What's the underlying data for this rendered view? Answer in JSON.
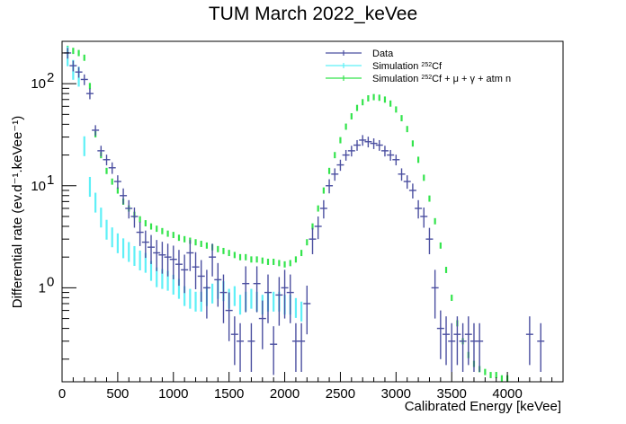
{
  "chart_data": {
    "type": "scatter",
    "title": "TUM March 2022_keVee",
    "xlabel": "Calibrated Energy [keVee]",
    "ylabel": "Differential rate (ev.d⁻¹.keVee⁻¹)",
    "xlim": [
      0,
      4500
    ],
    "ylim": [
      0.12,
      260
    ],
    "yscale": "log",
    "x_ticks": [
      0,
      500,
      1000,
      1500,
      2000,
      2500,
      3000,
      3500,
      4000
    ],
    "y_ticks": [
      {
        "value": 1,
        "label": "1",
        "exp": "0"
      },
      {
        "value": 10,
        "label": "10",
        "exp": "1"
      },
      {
        "value": 100,
        "label": "10",
        "exp": "2"
      }
    ],
    "legend_position": "top-right",
    "legend": [
      {
        "label": "Data",
        "sup": "",
        "suffix": ""
      },
      {
        "label": "Simulation ",
        "sup": "252",
        "suffix": "Cf"
      },
      {
        "label": "Simulation ",
        "sup": "252",
        "suffix": "Cf + μ + γ + atm n"
      }
    ],
    "series": [
      {
        "name": "Data",
        "color": "#4b4fa0",
        "x": [
          50,
          100,
          150,
          200,
          250,
          300,
          350,
          400,
          450,
          500,
          550,
          600,
          650,
          700,
          750,
          800,
          850,
          900,
          950,
          1000,
          1050,
          1100,
          1150,
          1200,
          1250,
          1300,
          1350,
          1400,
          1450,
          1500,
          1550,
          1600,
          1650,
          1700,
          1750,
          1800,
          1850,
          1900,
          1950,
          2000,
          2050,
          2100,
          2150,
          2200,
          2250,
          2300,
          2350,
          2400,
          2450,
          2500,
          2550,
          2600,
          2650,
          2700,
          2750,
          2800,
          2850,
          2900,
          2950,
          3000,
          3050,
          3100,
          3150,
          3200,
          3250,
          3300,
          3350,
          3400,
          3450,
          3500,
          3550,
          3600,
          3650,
          3700,
          3750,
          4200,
          4300
        ],
        "y": [
          200,
          150,
          130,
          110,
          80,
          35,
          22,
          18,
          15,
          11,
          8,
          6,
          5,
          3.5,
          2.8,
          2.5,
          2.2,
          2.1,
          2.0,
          1.9,
          1.7,
          1.5,
          2.2,
          1.6,
          1.3,
          1.0,
          2.0,
          1.2,
          0.9,
          0.6,
          0.35,
          0.3,
          1.1,
          0.3,
          1.1,
          0.5,
          0.9,
          0.28,
          0.85,
          1.0,
          0.9,
          0.3,
          0.3,
          0.7,
          3.0,
          4.0,
          6.0,
          10.0,
          13.0,
          16.0,
          20.0,
          22.0,
          25.0,
          28.0,
          27.0,
          26.0,
          25.0,
          22.0,
          20.0,
          18.0,
          13.0,
          11.0,
          9.0,
          6.0,
          5.0,
          3.0,
          1.0,
          0.4,
          0.35,
          0.3,
          0.35,
          0.3,
          0.35,
          0.3,
          0.3,
          0.35,
          0.3
        ]
      },
      {
        "name": "Simulation 252Cf",
        "color": "#5ef0f7",
        "x": [
          50,
          100,
          150,
          200,
          250,
          300,
          350,
          400,
          450,
          500,
          550,
          600,
          650,
          700,
          750,
          800,
          850,
          900,
          950,
          1000,
          1050,
          1100,
          1150,
          1200,
          1250,
          1300,
          1350,
          1400,
          1450,
          1500,
          1550,
          1600,
          1650,
          1700,
          1750,
          1800,
          1850,
          1900,
          1950,
          2000,
          2050,
          2100,
          2150
        ],
        "y": [
          190,
          140,
          120,
          25,
          10,
          7,
          5,
          3.8,
          3.2,
          2.8,
          2.5,
          2.3,
          2.1,
          1.9,
          1.8,
          1.5,
          1.3,
          1.25,
          1.2,
          1.1,
          1.0,
          0.85,
          0.8,
          0.75,
          0.75,
          0.85,
          0.9,
          1.0,
          0.95,
          0.8,
          0.85,
          0.7,
          0.75,
          0.8,
          0.75,
          0.7,
          0.75,
          0.75,
          0.75,
          0.7,
          0.7,
          0.65,
          0.6
        ]
      },
      {
        "name": "Simulation 252Cf + μ + γ + atm n",
        "color": "#33e44c",
        "x": [
          50,
          100,
          150,
          200,
          250,
          300,
          350,
          400,
          450,
          500,
          550,
          600,
          650,
          700,
          750,
          800,
          850,
          900,
          950,
          1000,
          1050,
          1100,
          1150,
          1200,
          1250,
          1300,
          1350,
          1400,
          1450,
          1500,
          1550,
          1600,
          1650,
          1700,
          1750,
          1800,
          1850,
          1900,
          1950,
          2000,
          2050,
          2100,
          2150,
          2200,
          2250,
          2300,
          2350,
          2400,
          2450,
          2500,
          2550,
          2600,
          2650,
          2700,
          2750,
          2800,
          2850,
          2900,
          2950,
          3000,
          3050,
          3100,
          3150,
          3200,
          3250,
          3300,
          3350,
          3400,
          3450,
          3500,
          3550,
          3600,
          3650,
          3700,
          3750,
          3800,
          3850,
          3900,
          3950,
          4000
        ],
        "y": [
          220,
          210,
          200,
          180,
          95,
          32,
          20,
          14,
          11,
          9,
          7,
          6,
          5.2,
          4.7,
          4.3,
          4.0,
          3.8,
          3.6,
          3.4,
          3.3,
          3.1,
          3.0,
          2.9,
          2.8,
          2.7,
          2.6,
          2.5,
          2.4,
          2.3,
          2.2,
          2.1,
          2.0,
          2.0,
          1.9,
          1.9,
          1.85,
          1.8,
          1.8,
          1.75,
          1.7,
          1.75,
          1.9,
          2.2,
          2.8,
          4.0,
          6.0,
          9.0,
          14.0,
          20.0,
          28.0,
          38.0,
          48.0,
          58.0,
          66.0,
          72.0,
          74.0,
          73.0,
          70.0,
          64.0,
          56.0,
          46.0,
          36.0,
          26.0,
          18.0,
          12.0,
          7.5,
          4.5,
          2.6,
          1.5,
          0.8,
          0.45,
          0.3,
          0.22,
          0.18,
          0.16,
          0.15,
          0.14,
          0.14,
          0.13,
          0.13
        ]
      }
    ]
  }
}
